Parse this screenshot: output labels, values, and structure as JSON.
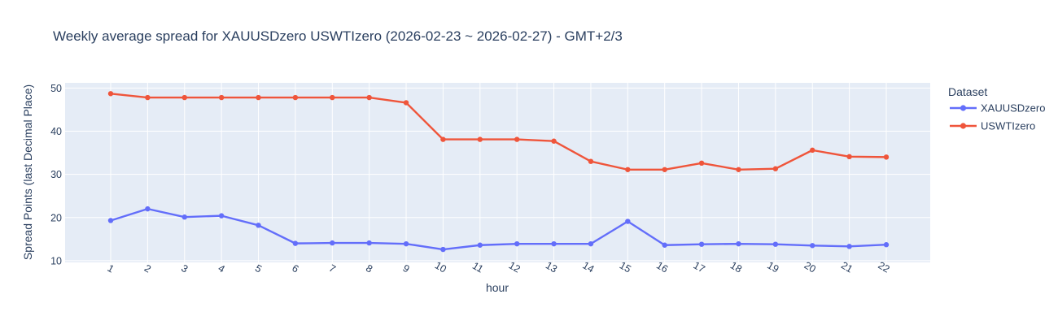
{
  "title": "Weekly average spread for  XAUUSDzero USWTIzero (2026-02-23 ~ 2026-02-27) - GMT+2/3",
  "colors": {
    "text": "#2a3f5f",
    "plot_background": "#E5ECF6",
    "gridline": "#FFFFFF",
    "series_blue": "#636EFA",
    "series_red": "#EF553B"
  },
  "legend": {
    "title": "Dataset",
    "items": [
      {
        "label": "XAUUSDzero",
        "color": "#636EFA"
      },
      {
        "label": "USWTIzero",
        "color": "#EF553B"
      }
    ]
  },
  "chart_data": {
    "type": "line",
    "title": "Weekly average spread for  XAUUSDzero USWTIzero (2026-02-23 ~ 2026-02-27) - GMT+2/3",
    "xlabel": "hour",
    "ylabel": "Spread Points (last Decimal Place)",
    "x": [
      1,
      2,
      3,
      4,
      5,
      6,
      7,
      8,
      9,
      10,
      11,
      12,
      13,
      14,
      15,
      16,
      17,
      18,
      19,
      20,
      21,
      22
    ],
    "y_ticks": [
      10,
      20,
      30,
      40,
      50
    ],
    "ylim": [
      9.6,
      51.2
    ],
    "grid": true,
    "legend_position": "right",
    "legend_title": "Dataset",
    "series": [
      {
        "name": "XAUUSDzero",
        "color": "#636EFA",
        "values": [
          19.3,
          22.0,
          20.1,
          20.4,
          18.2,
          14.0,
          14.1,
          14.1,
          13.9,
          12.6,
          13.6,
          13.9,
          13.9,
          13.9,
          19.1,
          13.6,
          13.8,
          13.9,
          13.8,
          13.5,
          13.3,
          13.7
        ]
      },
      {
        "name": "USWTIzero",
        "color": "#EF553B",
        "values": [
          48.7,
          47.8,
          47.8,
          47.8,
          47.8,
          47.8,
          47.8,
          47.8,
          46.6,
          38.1,
          38.1,
          38.1,
          37.7,
          33.0,
          31.1,
          31.1,
          32.6,
          31.1,
          31.3,
          35.6,
          34.1,
          34.0
        ]
      }
    ]
  }
}
